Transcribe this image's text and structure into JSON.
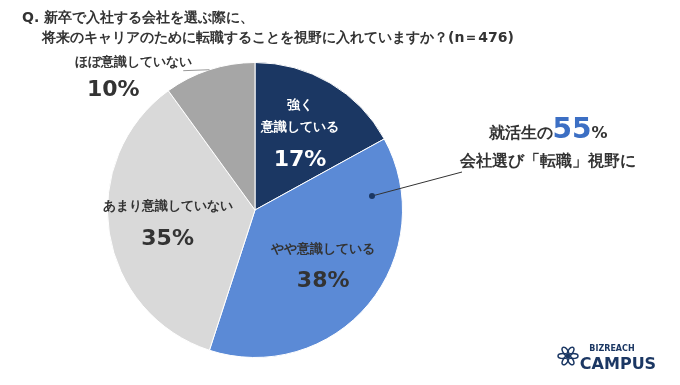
{
  "chart_data": {
    "type": "pie",
    "title": [
      "Q. 新卒で入社する会社を選ぶ際に、",
      "将来のキャリアのために転職することを視野に入れていますか？(n＝476)"
    ],
    "categories": [
      "強く意識している",
      "やや意識している",
      "あまり意識していない",
      "ほぼ意識していない"
    ],
    "values": [
      17,
      38,
      35,
      10
    ],
    "value_labels": [
      "17%",
      "38%",
      "35%",
      "10%"
    ],
    "colors": [
      "#1b3763",
      "#5b8ad6",
      "#d9d9d9",
      "#a6a6a6"
    ],
    "data_labels": true,
    "annotation": [
      "就活生の55%",
      "会社選び「転職」視野に"
    ],
    "logo": [
      "BIZREACH",
      "CAMPUS"
    ]
  }
}
